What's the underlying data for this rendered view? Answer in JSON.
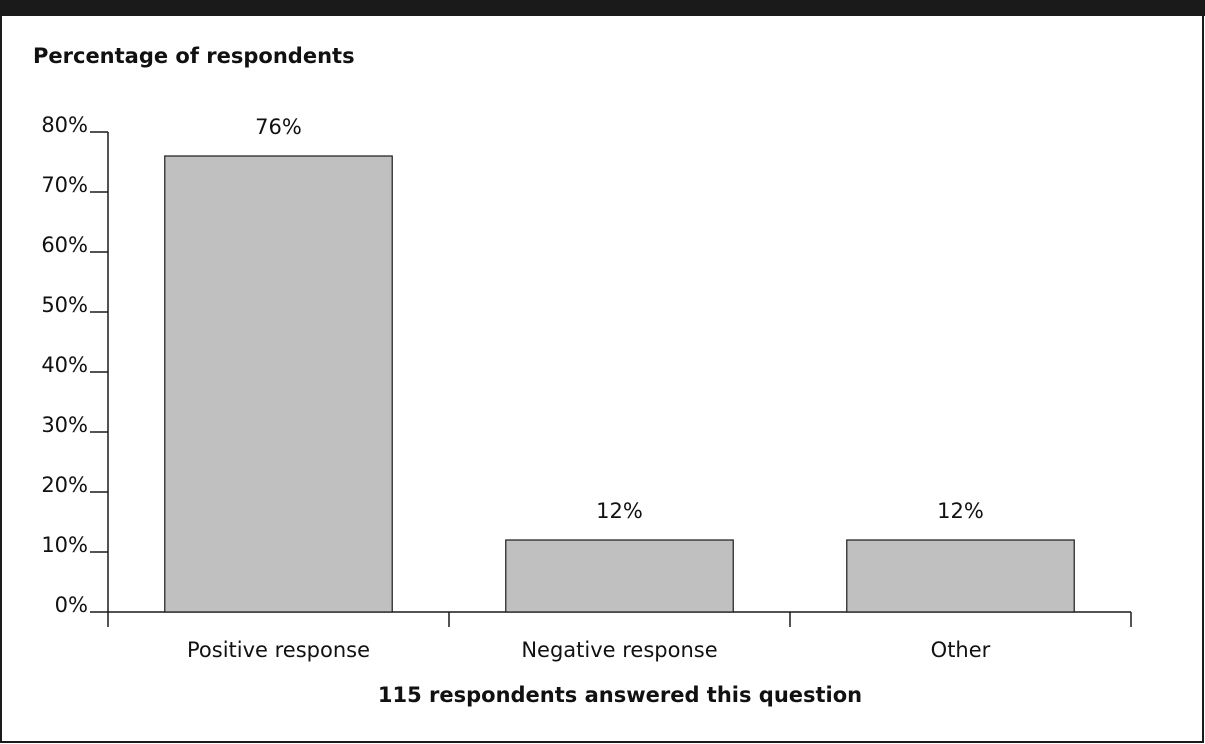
{
  "header": {
    "title": ""
  },
  "chart_data": {
    "type": "bar",
    "title": "",
    "ylabel": "Percentage of respondents",
    "xlabel": "",
    "categories": [
      "Positive response",
      "Negative response",
      "Other"
    ],
    "values": [
      76,
      12,
      12
    ],
    "value_labels": [
      "76%",
      "12%",
      "12%"
    ],
    "ylim": [
      0,
      80
    ],
    "yticks": [
      0,
      10,
      20,
      30,
      40,
      50,
      60,
      70,
      80
    ],
    "ytick_labels": [
      "0%",
      "10%",
      "20%",
      "30%",
      "40%",
      "50%",
      "60%",
      "70%",
      "80%"
    ],
    "footer": "115 respondents answered this question",
    "grid": false,
    "legend": "none",
    "colors": {
      "bar_fill": "#c0c0c0",
      "bar_stroke": "#1a1a1a",
      "axis": "#1a1a1a",
      "header_bg": "#1a1a1a"
    }
  }
}
